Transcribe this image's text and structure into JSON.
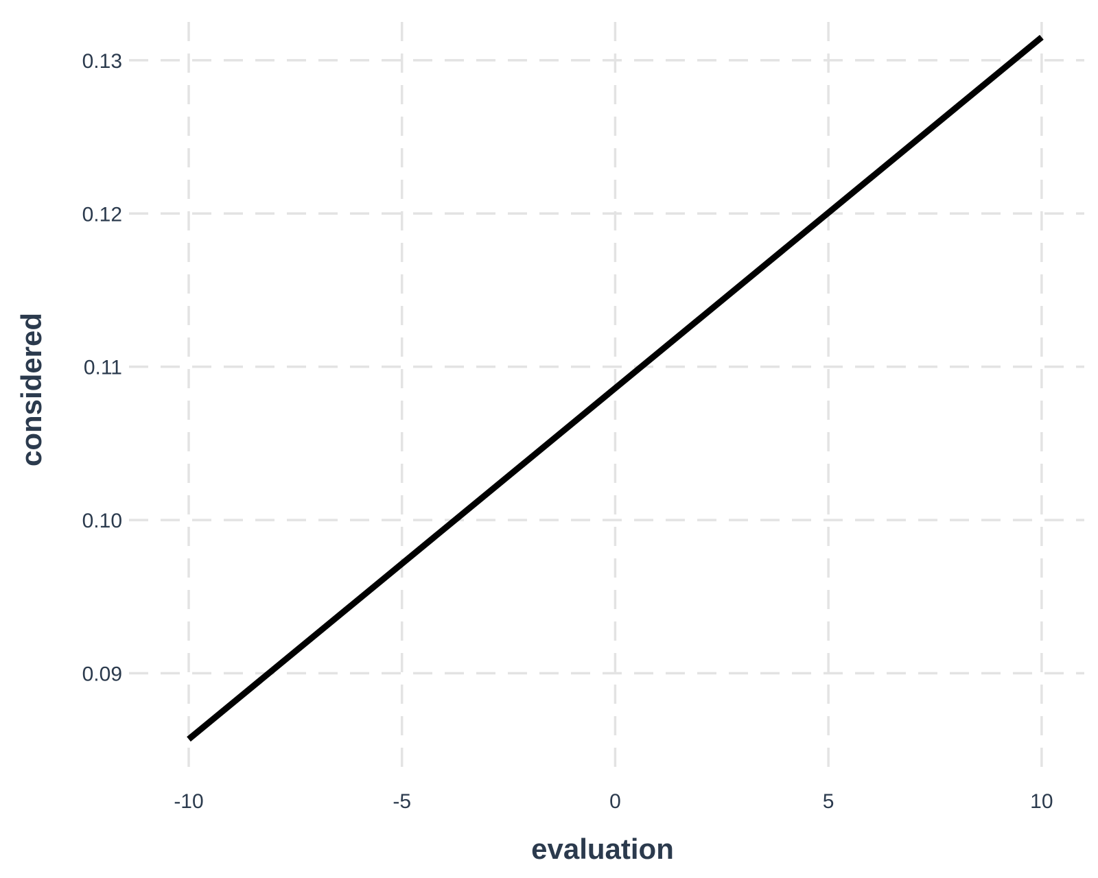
{
  "chart_data": {
    "type": "line",
    "title": "",
    "xlabel": "evaluation",
    "ylabel": "considered",
    "xlim": [
      -11.4,
      11.0
    ],
    "ylim": [
      0.0838,
      0.1325
    ],
    "x_ticks": [
      -10,
      -5,
      0,
      5,
      10
    ],
    "x_tick_labels": [
      "-10",
      "-5",
      "0",
      "5",
      "10"
    ],
    "y_ticks": [
      0.09,
      0.1,
      0.11,
      0.12,
      0.13
    ],
    "y_tick_labels": [
      "0.09",
      "0.10",
      "0.11",
      "0.12",
      "0.13"
    ],
    "grid": true,
    "series": [
      {
        "color": "#000000",
        "x": [
          -10,
          10
        ],
        "y": [
          0.0857,
          0.1315
        ]
      }
    ]
  }
}
